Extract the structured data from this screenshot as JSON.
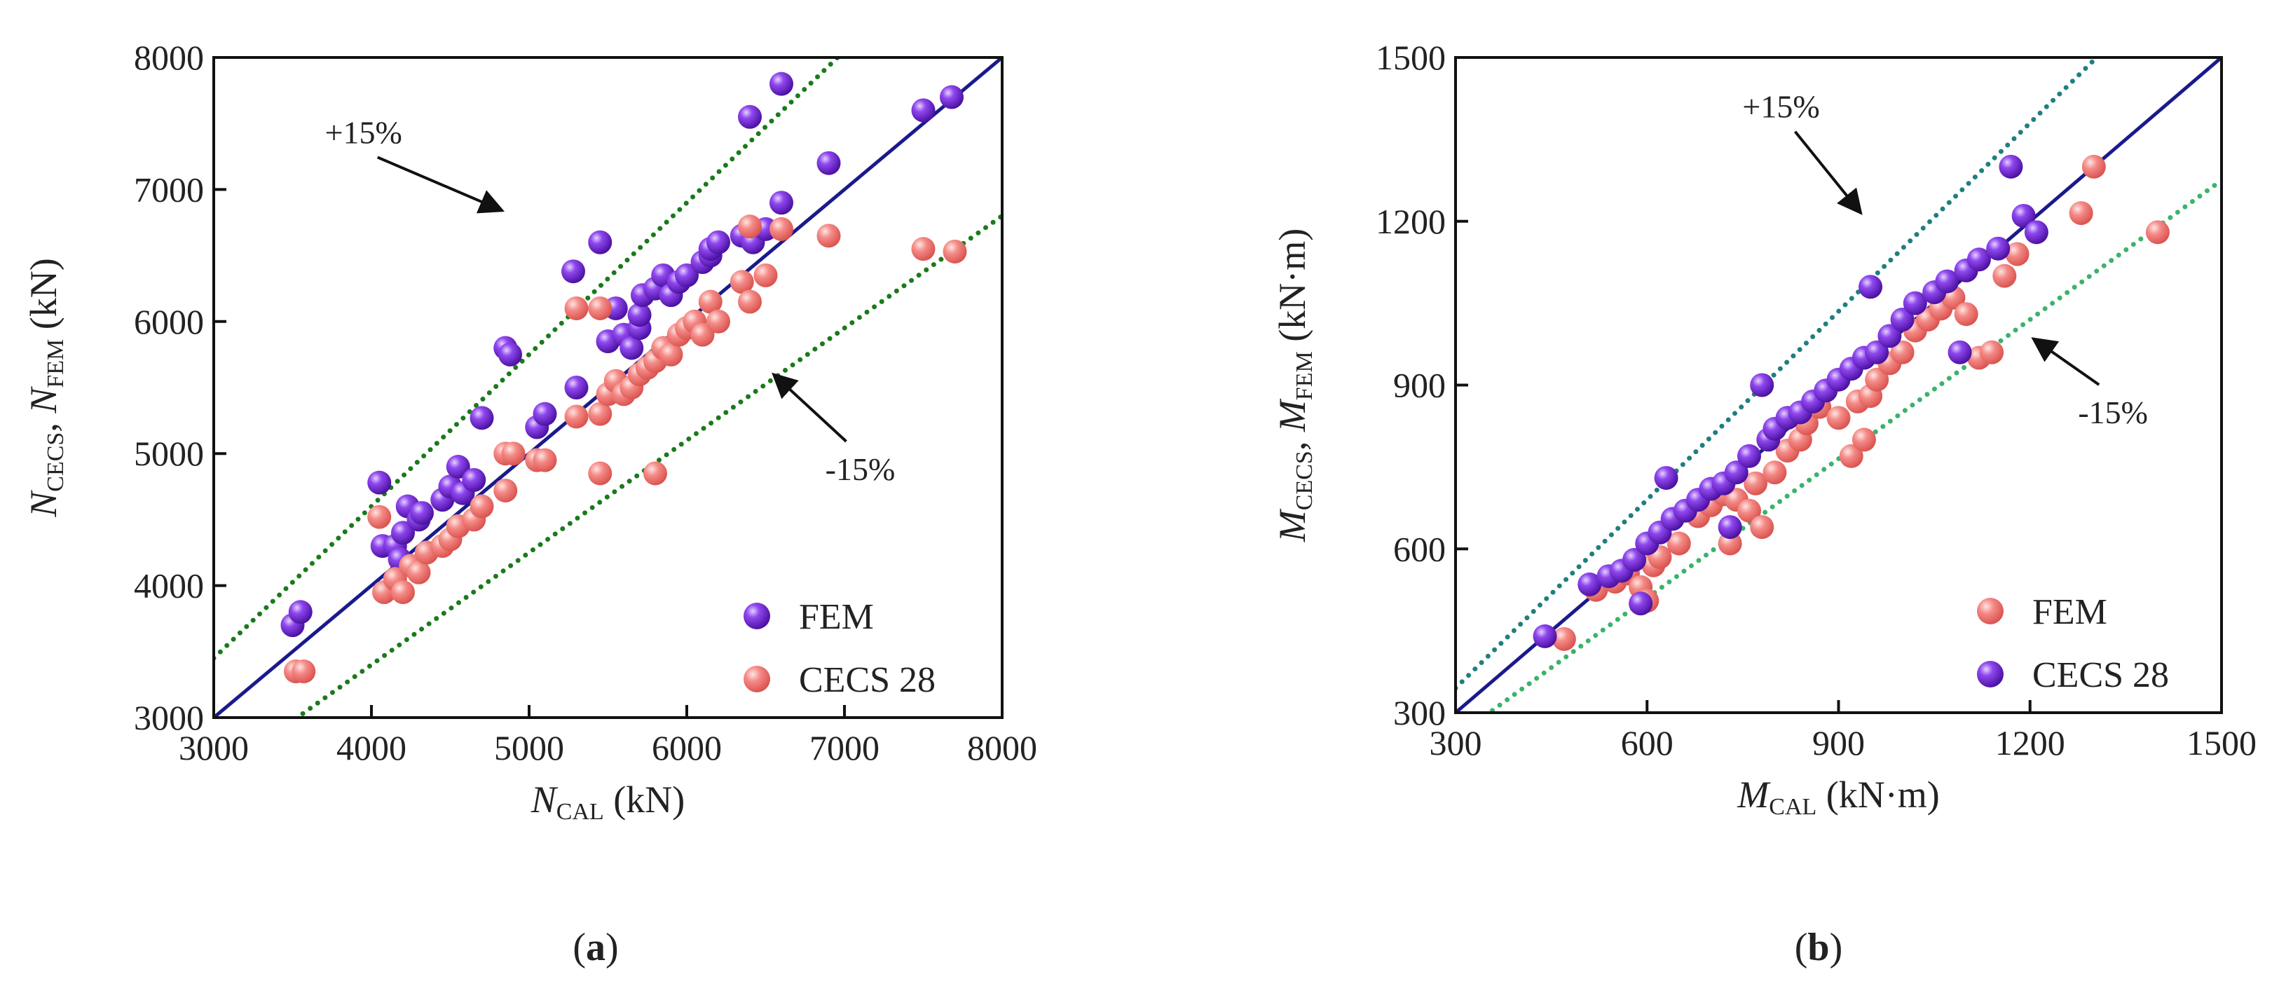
{
  "chart_data": [
    {
      "panel": "(a)",
      "panel_letter": "a",
      "type": "scatter",
      "xlim": [
        3000,
        8000
      ],
      "ylim": [
        3000,
        8000
      ],
      "xticks": [
        3000,
        4000,
        5000,
        6000,
        7000,
        8000
      ],
      "yticks": [
        3000,
        4000,
        5000,
        6000,
        7000,
        8000
      ],
      "xlabel": {
        "main": "N",
        "sub": "CAL",
        "unit": "(kN)"
      },
      "ylabel": {
        "main1": "N",
        "sub1": "CECS",
        "sep": ", ",
        "main2": "N",
        "sub2": "FEM",
        "unit": "(kN)"
      },
      "legend_position": "bottom-right",
      "grid": false,
      "reference_lines": [
        {
          "name": "y = x",
          "slope": 1.0,
          "style": "solid",
          "color": "#1a1a8c"
        },
        {
          "name": "+15%",
          "slope": 1.15,
          "style": "dotted",
          "color": "#1a7a1a"
        },
        {
          "name": "-15%",
          "slope": 0.85,
          "style": "dotted",
          "color": "#1a7a1a"
        }
      ],
      "annotations": [
        {
          "text": "+15%",
          "x": 3950,
          "y": 7350,
          "arrow_to": [
            4830,
            6840
          ]
        },
        {
          "text": "-15%",
          "x": 7100,
          "y": 4800,
          "arrow_to": [
            6550,
            5600
          ]
        }
      ],
      "series": [
        {
          "name": "FEM",
          "color": "#7a2fd9",
          "points": [
            [
              3500,
              3700
            ],
            [
              3550,
              3800
            ],
            [
              4050,
              4780
            ],
            [
              4070,
              4300
            ],
            [
              4150,
              4300
            ],
            [
              4180,
              4200
            ],
            [
              4200,
              4400
            ],
            [
              4230,
              4600
            ],
            [
              4300,
              4500
            ],
            [
              4320,
              4550
            ],
            [
              4450,
              4650
            ],
            [
              4500,
              4750
            ],
            [
              4550,
              4900
            ],
            [
              4580,
              4700
            ],
            [
              4650,
              4800
            ],
            [
              4700,
              5270
            ],
            [
              4850,
              5800
            ],
            [
              4880,
              5750
            ],
            [
              5050,
              5200
            ],
            [
              5100,
              5300
            ],
            [
              5280,
              6380
            ],
            [
              5300,
              5500
            ],
            [
              5450,
              6600
            ],
            [
              5500,
              5850
            ],
            [
              5550,
              6100
            ],
            [
              5600,
              5900
            ],
            [
              5650,
              5800
            ],
            [
              5700,
              5950
            ],
            [
              5700,
              6050
            ],
            [
              5720,
              6200
            ],
            [
              5800,
              6250
            ],
            [
              5850,
              6350
            ],
            [
              5900,
              6200
            ],
            [
              5950,
              6300
            ],
            [
              6000,
              6350
            ],
            [
              6100,
              6450
            ],
            [
              6150,
              6500
            ],
            [
              6150,
              6550
            ],
            [
              6200,
              6600
            ],
            [
              6350,
              6650
            ],
            [
              6400,
              7550
            ],
            [
              6420,
              6600
            ],
            [
              6500,
              6700
            ],
            [
              6600,
              6900
            ],
            [
              6600,
              7800
            ],
            [
              6900,
              7200
            ],
            [
              7500,
              7600
            ],
            [
              7680,
              7700
            ]
          ]
        },
        {
          "name": "CECS 28",
          "color": "#f07a78",
          "points": [
            [
              3520,
              3350
            ],
            [
              3570,
              3350
            ],
            [
              4050,
              4520
            ],
            [
              4080,
              3950
            ],
            [
              4150,
              4050
            ],
            [
              4200,
              3950
            ],
            [
              4250,
              4150
            ],
            [
              4300,
              4100
            ],
            [
              4350,
              4250
            ],
            [
              4450,
              4300
            ],
            [
              4500,
              4350
            ],
            [
              4550,
              4450
            ],
            [
              4650,
              4500
            ],
            [
              4700,
              4600
            ],
            [
              4850,
              4720
            ],
            [
              4850,
              5000
            ],
            [
              4900,
              5000
            ],
            [
              5050,
              4950
            ],
            [
              5100,
              4950
            ],
            [
              5300,
              5280
            ],
            [
              5300,
              6100
            ],
            [
              5450,
              4850
            ],
            [
              5450,
              5300
            ],
            [
              5450,
              6100
            ],
            [
              5500,
              5450
            ],
            [
              5550,
              5550
            ],
            [
              5600,
              5450
            ],
            [
              5650,
              5500
            ],
            [
              5700,
              5600
            ],
            [
              5750,
              5650
            ],
            [
              5800,
              4850
            ],
            [
              5800,
              5700
            ],
            [
              5850,
              5800
            ],
            [
              5900,
              5750
            ],
            [
              5950,
              5900
            ],
            [
              6000,
              5950
            ],
            [
              6050,
              6000
            ],
            [
              6100,
              5900
            ],
            [
              6150,
              6150
            ],
            [
              6200,
              6000
            ],
            [
              6350,
              6300
            ],
            [
              6400,
              6150
            ],
            [
              6400,
              6720
            ],
            [
              6500,
              6350
            ],
            [
              6600,
              6700
            ],
            [
              6900,
              6650
            ],
            [
              7500,
              6550
            ],
            [
              7700,
              6530
            ]
          ]
        }
      ]
    },
    {
      "panel": "(b)",
      "panel_letter": "b",
      "type": "scatter",
      "xlim": [
        300,
        1500
      ],
      "ylim": [
        300,
        1500
      ],
      "xticks": [
        300,
        600,
        900,
        1200,
        1500
      ],
      "yticks": [
        300,
        600,
        900,
        1200,
        1500
      ],
      "xlabel": {
        "main": "M",
        "sub": "CAL",
        "unit": "(kN·m)"
      },
      "ylabel": {
        "main1": "M",
        "sub1": "CECS",
        "sep": ", ",
        "main2": "M",
        "sub2": "FEM",
        "unit": "(kN·m)"
      },
      "legend_position": "bottom-right",
      "grid": false,
      "reference_lines": [
        {
          "name": "y = x",
          "slope": 1.0,
          "style": "solid",
          "color": "#1a1a8c"
        },
        {
          "name": "+15%",
          "slope": 1.15,
          "style": "dotted",
          "color": "#1f7f7f"
        },
        {
          "name": "-15%",
          "slope": 0.85,
          "style": "dotted",
          "color": "#3bb36a"
        }
      ],
      "annotations": [
        {
          "text": "+15%",
          "x": 810,
          "y": 1390,
          "arrow_to": [
            935,
            1215
          ]
        },
        {
          "text": "-15%",
          "x": 1330,
          "y": 830,
          "arrow_to": [
            1205,
            985
          ]
        }
      ],
      "series": [
        {
          "name": "FEM",
          "color": "#f07a78",
          "points": [
            [
              470,
              435
            ],
            [
              520,
              525
            ],
            [
              550,
              540
            ],
            [
              570,
              555
            ],
            [
              590,
              530
            ],
            [
              600,
              505
            ],
            [
              610,
              570
            ],
            [
              620,
              585
            ],
            [
              650,
              610
            ],
            [
              680,
              660
            ],
            [
              700,
              680
            ],
            [
              720,
              700
            ],
            [
              730,
              610
            ],
            [
              740,
              690
            ],
            [
              760,
              670
            ],
            [
              770,
              720
            ],
            [
              780,
              640
            ],
            [
              800,
              740
            ],
            [
              820,
              780
            ],
            [
              840,
              800
            ],
            [
              850,
              830
            ],
            [
              870,
              860
            ],
            [
              900,
              840
            ],
            [
              920,
              770
            ],
            [
              930,
              870
            ],
            [
              940,
              800
            ],
            [
              950,
              880
            ],
            [
              960,
              910
            ],
            [
              980,
              940
            ],
            [
              1000,
              960
            ],
            [
              1020,
              1000
            ],
            [
              1040,
              1020
            ],
            [
              1060,
              1040
            ],
            [
              1080,
              1060
            ],
            [
              1100,
              1030
            ],
            [
              1120,
              950
            ],
            [
              1140,
              960
            ],
            [
              1160,
              1100
            ],
            [
              1180,
              1140
            ],
            [
              1280,
              1215
            ],
            [
              1300,
              1300
            ],
            [
              1400,
              1180
            ]
          ]
        },
        {
          "name": "CECS 28",
          "color": "#7a2fd9",
          "points": [
            [
              440,
              440
            ],
            [
              510,
              535
            ],
            [
              540,
              550
            ],
            [
              560,
              560
            ],
            [
              580,
              580
            ],
            [
              590,
              500
            ],
            [
              600,
              610
            ],
            [
              620,
              630
            ],
            [
              630,
              730
            ],
            [
              640,
              655
            ],
            [
              660,
              670
            ],
            [
              680,
              690
            ],
            [
              700,
              710
            ],
            [
              720,
              720
            ],
            [
              730,
              640
            ],
            [
              740,
              740
            ],
            [
              760,
              770
            ],
            [
              780,
              900
            ],
            [
              790,
              800
            ],
            [
              800,
              820
            ],
            [
              820,
              840
            ],
            [
              840,
              850
            ],
            [
              860,
              870
            ],
            [
              880,
              890
            ],
            [
              900,
              910
            ],
            [
              920,
              930
            ],
            [
              940,
              950
            ],
            [
              950,
              1080
            ],
            [
              960,
              960
            ],
            [
              980,
              990
            ],
            [
              1000,
              1020
            ],
            [
              1020,
              1050
            ],
            [
              1050,
              1070
            ],
            [
              1070,
              1090
            ],
            [
              1100,
              1110
            ],
            [
              1120,
              1130
            ],
            [
              1150,
              1150
            ],
            [
              1170,
              1300
            ],
            [
              1190,
              1210
            ],
            [
              1210,
              1180
            ],
            [
              1090,
              960
            ]
          ]
        }
      ]
    }
  ]
}
